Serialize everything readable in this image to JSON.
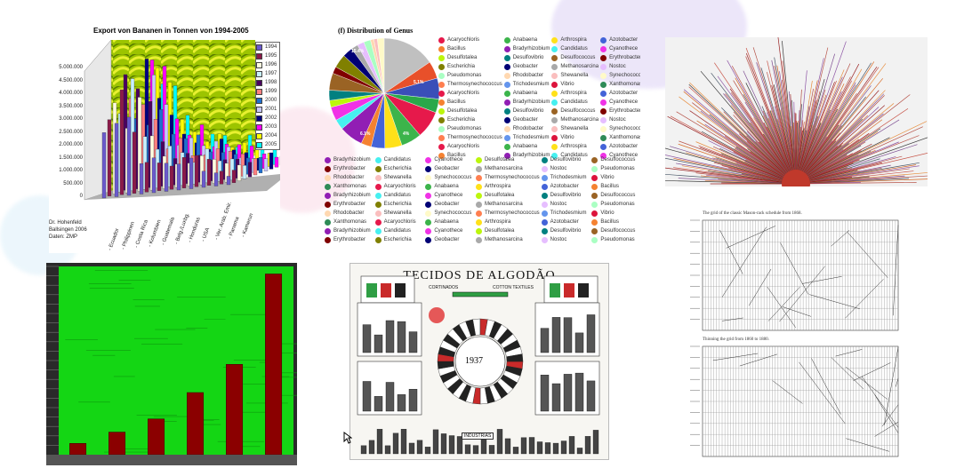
{
  "chart_data": [
    {
      "type": "bar",
      "title": "Export von Bananen in Tonnen von 1994-2005",
      "categories": [
        "Ecuador",
        "Philippinen",
        "Costa Rica",
        "Kolumbien",
        "Guatemala",
        "Belg./Luxbg.",
        "Honduras",
        "USA",
        "Ver. Arab. Emir.",
        "Panama",
        "Kamerun"
      ],
      "legend": [
        "1994",
        "1995",
        "1996",
        "1997",
        "1998",
        "1999",
        "2000",
        "2001",
        "2002",
        "2003",
        "2004",
        "2005"
      ],
      "legend_colors": [
        "#6a5acd",
        "#8b1a4a",
        "#fffde0",
        "#c8f0ff",
        "#4b0060",
        "#ff8080",
        "#1e6fd0",
        "#c8c8ff",
        "#000080",
        "#ff00ff",
        "#ffff00",
        "#00ffff"
      ],
      "yticks": [
        "5.000.000",
        "4.500.000",
        "4.000.000",
        "3.500.000",
        "3.000.000",
        "2.500.000",
        "2.000.000",
        "1.500.000",
        "1.000.000",
        "500.000",
        "0"
      ],
      "source_note": [
        "Dr. Hohenfeld",
        "Ballsingen 2006",
        "Daten: ZMP"
      ],
      "legend_placement": "right"
    },
    {
      "type": "pie",
      "title": "(f) Distribution of Genus",
      "slice_labels": [
        "15.4%",
        "5.1%",
        "6.1%",
        "4%"
      ],
      "genus_legend": [
        "Acaryochloris",
        "Anabaena",
        "Arthrospira",
        "Azotobacter",
        "Bacillus",
        "Bradyrhizobium",
        "Candidatus",
        "Cyanothece",
        "Desulfotalea",
        "Desulfovibrio",
        "Desulfococcus",
        "Erythrobacter",
        "Escherichia",
        "Geobacter",
        "Methanosarcina",
        "Nostoc",
        "Pseudomonas",
        "Rhodobacter",
        "Shewanella",
        "Synechococcus",
        "Thermosynechococcus",
        "Trichodesmium",
        "Vibrio",
        "Xanthomonas"
      ],
      "genus_colors": [
        "#e6194b",
        "#3cb44b",
        "#ffe119",
        "#4363d8",
        "#f58231",
        "#911eb4",
        "#46f0f0",
        "#f032e6",
        "#bcf60c",
        "#008080",
        "#9a6324",
        "#800000",
        "#808000",
        "#000075",
        "#a9a9a9",
        "#e6beff",
        "#aaffc3",
        "#ffd8b1",
        "#fabebe",
        "#fffac8",
        "#ff7f50",
        "#6495ed",
        "#dc143c",
        "#2e8b57"
      ]
    },
    {
      "type": "bar",
      "values": [
        6,
        12,
        19,
        33,
        48,
        96
      ],
      "ylim": [
        0,
        100
      ],
      "colors": {
        "background": "#14d614",
        "bars": "#8b0000"
      }
    },
    {
      "type": "table",
      "title": "TECIDOS DE ALGODÃO",
      "subtitle_left": "CORTINADOS",
      "subtitle_right": "COTTON TEXTILES",
      "center_label": "1937",
      "bottom_label": "INDUSTRIAS"
    }
  ],
  "captions": {
    "timetable_top": "The grid of the classic Mason-rack schedule from 1868.",
    "timetable_bottom": "Thinning the grid from 1860 to 1880."
  }
}
